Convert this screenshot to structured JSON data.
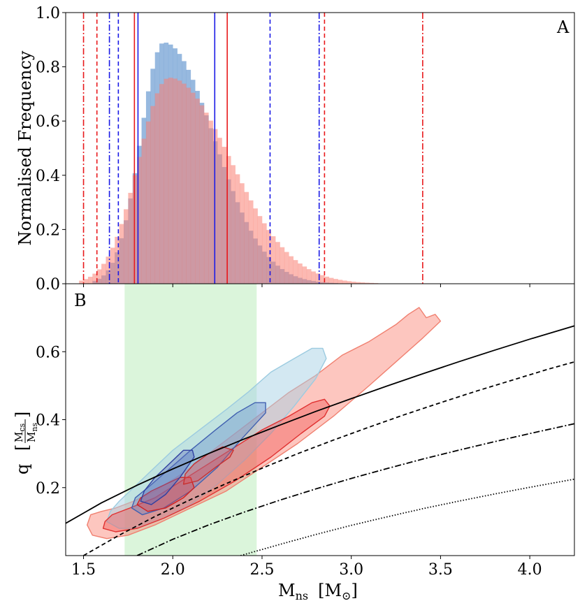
{
  "chart_data": [
    {
      "panel": "A",
      "type": "histogram",
      "panel_label": "A",
      "ylabel": "Normalised Frequency",
      "xlim": [
        1.4,
        4.25
      ],
      "ylim": [
        0.0,
        1.0
      ],
      "yticks": [
        0.0,
        0.2,
        0.4,
        0.6,
        0.8,
        1.0
      ],
      "ytick_labels": [
        "0.0",
        "0.2",
        "0.4",
        "0.6",
        "0.8",
        "1.0"
      ],
      "bin_width": 0.025,
      "series": [
        {
          "name": "blue posterior",
          "color": "#6b9bd1",
          "opacity": 0.7,
          "profile": {
            "peak_x": 1.95,
            "peak_y": 0.89,
            "rise_width": 0.13,
            "fall_width": 0.28,
            "tail": 0.0,
            "start": 1.55,
            "end": 2.95
          }
        },
        {
          "name": "red posterior",
          "color": "#fa8072",
          "opacity": 0.55,
          "profile": {
            "peak_x": 1.98,
            "peak_y": 0.76,
            "rise_width": 0.17,
            "fall_width": 0.34,
            "tail": 0.0,
            "start": 1.48,
            "end": 3.65
          }
        }
      ],
      "vlines": [
        {
          "x": 1.5,
          "color": "#e8191c",
          "style": "dashdot"
        },
        {
          "x": 1.575,
          "color": "#e8191c",
          "style": "dashed"
        },
        {
          "x": 1.645,
          "color": "#1a1ae6",
          "style": "dashdot"
        },
        {
          "x": 1.695,
          "color": "#1a1ae6",
          "style": "dashed"
        },
        {
          "x": 1.785,
          "color": "#e8191c",
          "style": "solid"
        },
        {
          "x": 1.805,
          "color": "#1a1ae6",
          "style": "solid"
        },
        {
          "x": 2.235,
          "color": "#1a1ae6",
          "style": "solid"
        },
        {
          "x": 2.305,
          "color": "#e8191c",
          "style": "solid"
        },
        {
          "x": 2.545,
          "color": "#1a1ae6",
          "style": "dashed"
        },
        {
          "x": 2.82,
          "color": "#1a1ae6",
          "style": "dashdot"
        },
        {
          "x": 2.85,
          "color": "#e8191c",
          "style": "dashed"
        },
        {
          "x": 3.4,
          "color": "#e8191c",
          "style": "dashdot"
        }
      ]
    },
    {
      "panel": "B",
      "type": "contour",
      "panel_label": "B",
      "xlabel": "M",
      "xlabel_sub": "ns",
      "xlabel_unit": "M",
      "xlabel_unit_sub": "⊙",
      "ylabel": "q",
      "ylabel_frac_num": "M",
      "ylabel_frac_num_sub": "cs",
      "ylabel_frac_den": "M",
      "ylabel_frac_den_sub": "ns",
      "xlim": [
        1.4,
        4.25
      ],
      "ylim": [
        0.0,
        0.8
      ],
      "xticks": [
        1.5,
        2.0,
        2.5,
        3.0,
        3.5,
        4.0
      ],
      "xtick_labels": [
        "1.5",
        "2.0",
        "2.5",
        "3.0",
        "3.5",
        "4.0"
      ],
      "yticks": [
        0.2,
        0.4,
        0.6
      ],
      "ytick_labels": [
        "0.2",
        "0.4",
        "0.6"
      ],
      "shaded_band": {
        "x_range": [
          1.73,
          2.47
        ],
        "color": "#c8f0c8"
      },
      "contours": [
        {
          "name": "red outer",
          "fill": "#fa8072",
          "opacity": 0.45,
          "stroke": "#f08070",
          "points": [
            [
              1.52,
              0.09
            ],
            [
              1.55,
              0.06
            ],
            [
              1.63,
              0.05
            ],
            [
              1.75,
              0.06
            ],
            [
              1.9,
              0.09
            ],
            [
              2.1,
              0.14
            ],
            [
              2.3,
              0.19
            ],
            [
              2.5,
              0.26
            ],
            [
              2.7,
              0.33
            ],
            [
              2.9,
              0.41
            ],
            [
              3.1,
              0.5
            ],
            [
              3.25,
              0.57
            ],
            [
              3.4,
              0.64
            ],
            [
              3.5,
              0.69
            ],
            [
              3.47,
              0.71
            ],
            [
              3.42,
              0.7
            ],
            [
              3.38,
              0.73
            ],
            [
              3.32,
              0.71
            ],
            [
              3.25,
              0.68
            ],
            [
              3.1,
              0.63
            ],
            [
              2.95,
              0.59
            ],
            [
              2.8,
              0.53
            ],
            [
              2.65,
              0.48
            ],
            [
              2.5,
              0.42
            ],
            [
              2.35,
              0.36
            ],
            [
              2.2,
              0.3
            ],
            [
              2.05,
              0.24
            ],
            [
              1.9,
              0.19
            ],
            [
              1.78,
              0.16
            ],
            [
              1.68,
              0.14
            ],
            [
              1.6,
              0.13
            ],
            [
              1.54,
              0.12
            ]
          ]
        },
        {
          "name": "blue outer",
          "fill": "#a8d2e6",
          "opacity": 0.5,
          "stroke": "#9ccbe0",
          "points": [
            [
              1.63,
              0.1
            ],
            [
              1.7,
              0.08
            ],
            [
              1.8,
              0.08
            ],
            [
              1.95,
              0.11
            ],
            [
              2.1,
              0.15
            ],
            [
              2.25,
              0.21
            ],
            [
              2.4,
              0.28
            ],
            [
              2.55,
              0.36
            ],
            [
              2.68,
              0.44
            ],
            [
              2.8,
              0.52
            ],
            [
              2.86,
              0.58
            ],
            [
              2.84,
              0.61
            ],
            [
              2.78,
              0.61
            ],
            [
              2.68,
              0.58
            ],
            [
              2.55,
              0.54
            ],
            [
              2.42,
              0.48
            ],
            [
              2.3,
              0.43
            ],
            [
              2.15,
              0.37
            ],
            [
              2.0,
              0.31
            ],
            [
              1.88,
              0.25
            ],
            [
              1.78,
              0.2
            ],
            [
              1.7,
              0.16
            ],
            [
              1.65,
              0.13
            ]
          ]
        },
        {
          "name": "red mid",
          "fill": "#f05050",
          "opacity": 0.4,
          "stroke": "#e03030",
          "points": [
            [
              1.61,
              0.08
            ],
            [
              1.68,
              0.07
            ],
            [
              1.8,
              0.08
            ],
            [
              1.95,
              0.11
            ],
            [
              2.15,
              0.16
            ],
            [
              2.35,
              0.22
            ],
            [
              2.55,
              0.29
            ],
            [
              2.72,
              0.36
            ],
            [
              2.85,
              0.41
            ],
            [
              2.88,
              0.44
            ],
            [
              2.85,
              0.46
            ],
            [
              2.78,
              0.45
            ],
            [
              2.65,
              0.41
            ],
            [
              2.5,
              0.37
            ],
            [
              2.35,
              0.32
            ],
            [
              2.2,
              0.27
            ],
            [
              2.05,
              0.22
            ],
            [
              1.9,
              0.17
            ],
            [
              1.76,
              0.14
            ],
            [
              1.66,
              0.12
            ],
            [
              1.62,
              0.1
            ]
          ]
        },
        {
          "name": "blue mid",
          "fill": "#5a80c8",
          "opacity": 0.35,
          "stroke": "#4060b0",
          "points": [
            [
              1.77,
              0.14
            ],
            [
              1.83,
              0.12
            ],
            [
              1.95,
              0.14
            ],
            [
              2.1,
              0.19
            ],
            [
              2.25,
              0.26
            ],
            [
              2.38,
              0.34
            ],
            [
              2.52,
              0.42
            ],
            [
              2.52,
              0.45
            ],
            [
              2.46,
              0.45
            ],
            [
              2.36,
              0.42
            ],
            [
              2.24,
              0.37
            ],
            [
              2.1,
              0.31
            ],
            [
              1.97,
              0.25
            ],
            [
              1.86,
              0.2
            ],
            [
              1.79,
              0.17
            ]
          ]
        },
        {
          "name": "red inner",
          "fill": "#e84040",
          "opacity": 0.35,
          "stroke": "#d02020",
          "points": [
            [
              1.8,
              0.15
            ],
            [
              1.86,
              0.13
            ],
            [
              1.96,
              0.14
            ],
            [
              2.06,
              0.17
            ],
            [
              2.12,
              0.2
            ],
            [
              2.1,
              0.23
            ],
            [
              2.04,
              0.23
            ],
            [
              1.96,
              0.21
            ],
            [
              1.88,
              0.19
            ],
            [
              1.82,
              0.17
            ]
          ]
        },
        {
          "name": "blue inner",
          "fill": "#6070c0",
          "opacity": 0.4,
          "stroke": "#3040a0",
          "points": [
            [
              1.82,
              0.16
            ],
            [
              1.88,
              0.15
            ],
            [
              1.96,
              0.18
            ],
            [
              2.04,
              0.23
            ],
            [
              2.12,
              0.29
            ],
            [
              2.11,
              0.31
            ],
            [
              2.06,
              0.31
            ],
            [
              1.98,
              0.27
            ],
            [
              1.9,
              0.23
            ],
            [
              1.84,
              0.19
            ]
          ]
        },
        {
          "name": "red inner 2",
          "fill": "#e85050",
          "opacity": 0.35,
          "stroke": "#c83030",
          "points": [
            [
              2.06,
              0.21
            ],
            [
              2.14,
              0.22
            ],
            [
              2.24,
              0.26
            ],
            [
              2.32,
              0.29
            ],
            [
              2.34,
              0.31
            ],
            [
              2.28,
              0.32
            ],
            [
              2.2,
              0.3
            ],
            [
              2.12,
              0.27
            ],
            [
              2.07,
              0.24
            ]
          ]
        }
      ],
      "curves": [
        {
          "name": "solid",
          "style": "solid",
          "color": "#000000",
          "points": [
            [
              1.4,
              0.095
            ],
            [
              1.6,
              0.155
            ],
            [
              1.8,
              0.207
            ],
            [
              2.0,
              0.255
            ],
            [
              2.2,
              0.3
            ],
            [
              2.4,
              0.343
            ],
            [
              2.6,
              0.384
            ],
            [
              2.8,
              0.424
            ],
            [
              3.0,
              0.462
            ],
            [
              3.2,
              0.499
            ],
            [
              3.4,
              0.535
            ],
            [
              3.6,
              0.57
            ],
            [
              3.8,
              0.604
            ],
            [
              4.0,
              0.637
            ],
            [
              4.25,
              0.676
            ]
          ]
        },
        {
          "name": "dashed",
          "style": "dashed",
          "color": "#000000",
          "points": [
            [
              1.5,
              0.0
            ],
            [
              1.7,
              0.06
            ],
            [
              1.9,
              0.115
            ],
            [
              2.1,
              0.165
            ],
            [
              2.3,
              0.212
            ],
            [
              2.5,
              0.257
            ],
            [
              2.7,
              0.3
            ],
            [
              2.9,
              0.34
            ],
            [
              3.1,
              0.378
            ],
            [
              3.3,
              0.415
            ],
            [
              3.5,
              0.45
            ],
            [
              3.7,
              0.484
            ],
            [
              3.9,
              0.516
            ],
            [
              4.1,
              0.548
            ],
            [
              4.25,
              0.57
            ]
          ]
        },
        {
          "name": "dashdot",
          "style": "dashdot",
          "color": "#000000",
          "points": [
            [
              1.8,
              0.0
            ],
            [
              2.0,
              0.048
            ],
            [
              2.2,
              0.09
            ],
            [
              2.4,
              0.128
            ],
            [
              2.6,
              0.163
            ],
            [
              2.8,
              0.196
            ],
            [
              3.0,
              0.227
            ],
            [
              3.2,
              0.256
            ],
            [
              3.4,
              0.284
            ],
            [
              3.6,
              0.31
            ],
            [
              3.8,
              0.335
            ],
            [
              4.0,
              0.359
            ],
            [
              4.25,
              0.388
            ]
          ]
        },
        {
          "name": "dotted",
          "style": "dotted",
          "color": "#000000",
          "points": [
            [
              2.38,
              0.0
            ],
            [
              2.6,
              0.033
            ],
            [
              2.8,
              0.062
            ],
            [
              3.0,
              0.089
            ],
            [
              3.2,
              0.114
            ],
            [
              3.4,
              0.138
            ],
            [
              3.6,
              0.16
            ],
            [
              3.8,
              0.181
            ],
            [
              4.0,
              0.201
            ],
            [
              4.25,
              0.225
            ]
          ]
        }
      ]
    }
  ]
}
